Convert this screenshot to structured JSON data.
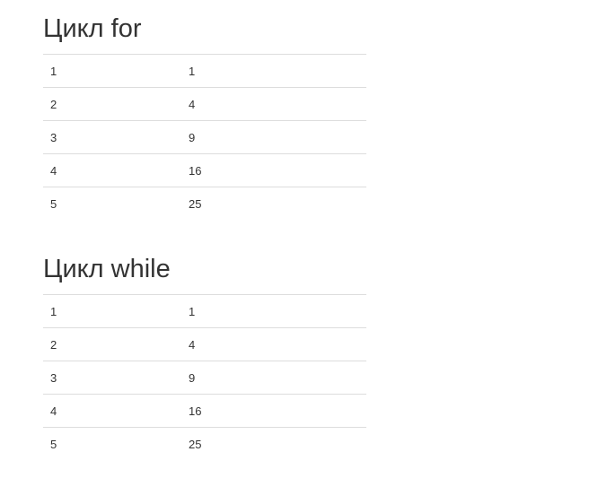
{
  "sections": [
    {
      "title": "Цикл for",
      "rows": [
        {
          "n": "1",
          "square": "1"
        },
        {
          "n": "2",
          "square": "4"
        },
        {
          "n": "3",
          "square": "9"
        },
        {
          "n": "4",
          "square": "16"
        },
        {
          "n": "5",
          "square": "25"
        }
      ]
    },
    {
      "title": "Цикл while",
      "rows": [
        {
          "n": "1",
          "square": "1"
        },
        {
          "n": "2",
          "square": "4"
        },
        {
          "n": "3",
          "square": "9"
        },
        {
          "n": "4",
          "square": "16"
        },
        {
          "n": "5",
          "square": "25"
        }
      ]
    }
  ]
}
